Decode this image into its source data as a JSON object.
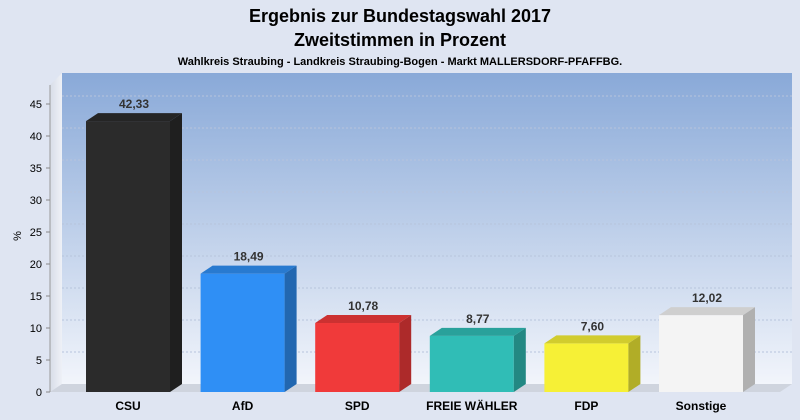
{
  "chart_data": {
    "type": "bar",
    "title": "Ergebnis zur Bundestagswahl 2017",
    "subtitle": "Zweitstimmen in Prozent",
    "caption": "Wahlkreis Straubing - Landkreis Straubing-Bogen - Markt MALLERSDORF-PFAFFBG.",
    "ylabel": "%",
    "ylim": [
      0,
      48
    ],
    "yticks": [
      0,
      5,
      10,
      15,
      20,
      25,
      30,
      35,
      40,
      45
    ],
    "grid": true,
    "categories": [
      "CSU",
      "AfD",
      "SPD",
      "FREIE WÄHLER",
      "FDP",
      "Sonstige"
    ],
    "values": [
      42.33,
      18.49,
      10.78,
      8.77,
      7.6,
      12.02
    ],
    "value_labels": [
      "42,33",
      "18,49",
      "10,78",
      "8,77",
      "7,60",
      "12,02"
    ],
    "colors": [
      "#2b2b2b",
      "#2f8ff5",
      "#f03a3a",
      "#30bdb6",
      "#f6f036",
      "#f4f4f4"
    ]
  }
}
